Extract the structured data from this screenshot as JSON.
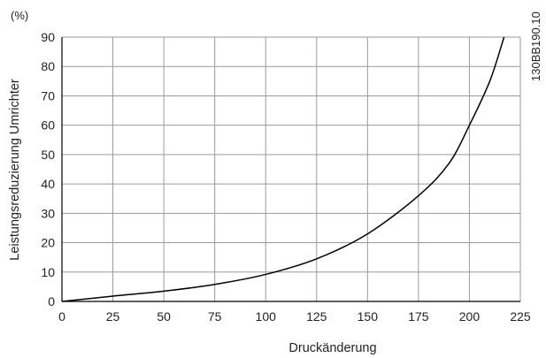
{
  "chart_data": {
    "type": "line",
    "title": "",
    "xlabel": "Druckänderung",
    "ylabel": "Leistungsreduzierung Umrichter",
    "y_unit": "(%)",
    "figure_code": "130BB190.10",
    "xlim": [
      0,
      225
    ],
    "ylim": [
      0,
      90
    ],
    "x_ticks": [
      0,
      25,
      50,
      75,
      100,
      125,
      150,
      175,
      200,
      225
    ],
    "y_ticks": [
      0,
      10,
      20,
      30,
      40,
      50,
      60,
      70,
      80,
      90
    ],
    "grid": true,
    "series": [
      {
        "x": [
          0,
          25,
          50,
          75,
          100,
          125,
          150,
          175,
          190,
          200,
          210,
          217
        ],
        "y": [
          0,
          1.8,
          3.5,
          5.8,
          9.2,
          14.5,
          23,
          36,
          47,
          60,
          75,
          90
        ]
      }
    ]
  }
}
